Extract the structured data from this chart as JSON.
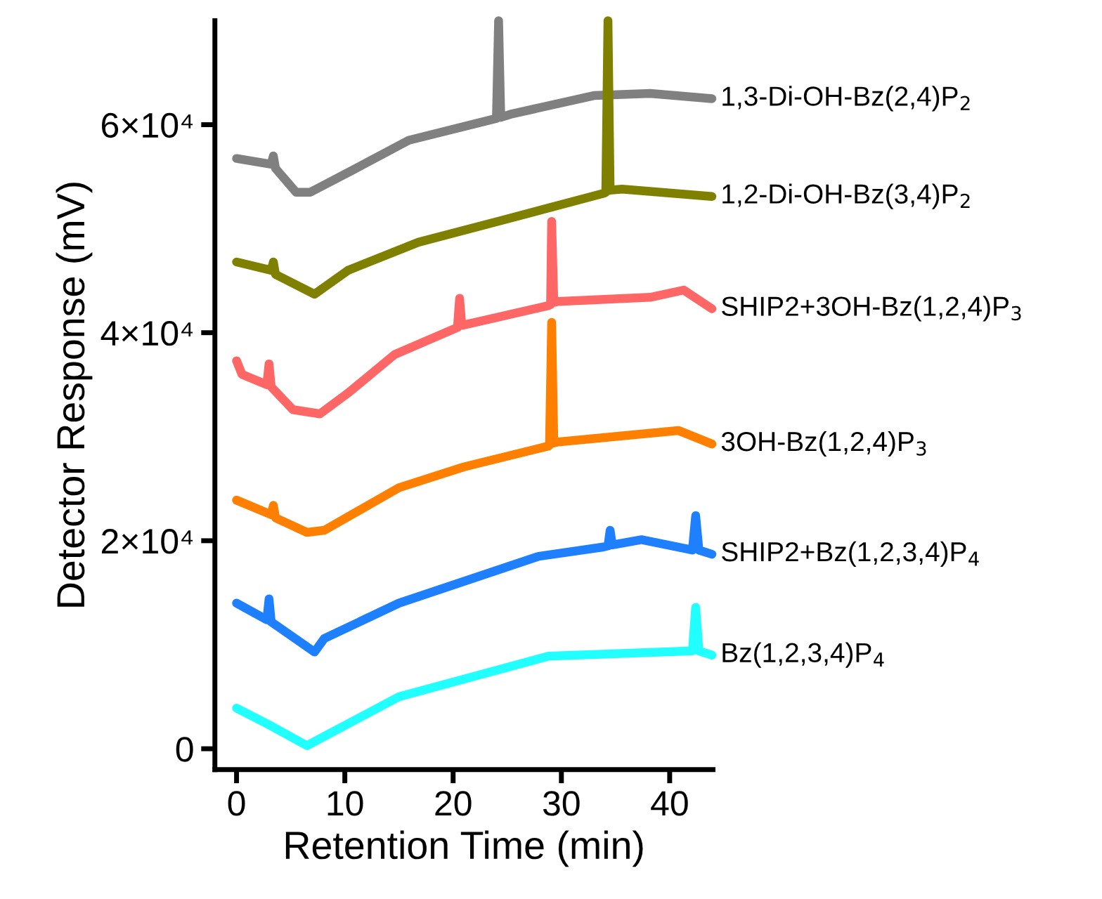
{
  "chart_data": {
    "type": "line",
    "xlabel": "Retention Time (min)",
    "ylabel": "Detector Response (mV)",
    "xlim": [
      -2,
      44
    ],
    "xticks": [
      0,
      10,
      20,
      30,
      40
    ],
    "ylim": [
      -2000,
      70000
    ],
    "yticks": [
      0,
      {
        "value": 20000,
        "label": "2×10⁴"
      },
      {
        "value": 40000,
        "label": "4×10⁴"
      },
      {
        "value": 60000,
        "label": "6×10⁴"
      }
    ],
    "grid": false,
    "legend": false,
    "marker": "none",
    "line_style": "solid",
    "series": [
      {
        "name": "1,3-Di-OH-Bz(2,4)P$_{2}$",
        "color": "#808080",
        "x": [
          0,
          3.2,
          3.4,
          3.6,
          5.5,
          6.8,
          10.3,
          15.9,
          23.6,
          24.0,
          24.2,
          24.4,
          25.3,
          33,
          38.2,
          43.9
        ],
        "values": [
          56750,
          56200,
          57000,
          55800,
          53500,
          53500,
          55400,
          58500,
          60500,
          60600,
          70000,
          60700,
          61000,
          62800,
          63000,
          62500
        ]
      },
      {
        "name": "1,2-Di-OH-Bz(3,4)P$_{2}$",
        "color": "#808000",
        "x": [
          0,
          3.2,
          3.4,
          3.6,
          7.2,
          10.3,
          16.8,
          24.5,
          33.9,
          34.1,
          34.3,
          34.5,
          35.6,
          43.9
        ],
        "values": [
          46800,
          46000,
          46800,
          45600,
          43700,
          46000,
          48700,
          50800,
          53400,
          53500,
          70000,
          53700,
          53800,
          53100
        ]
      },
      {
        "name": "SHIP2+3OH-Bz(1,2,4)P$_{3}$",
        "color": "#ff6666",
        "x": [
          0,
          0.5,
          2.8,
          3.0,
          3.2,
          5.2,
          7.7,
          10.3,
          14.6,
          20.4,
          20.6,
          20.8,
          28.8,
          29.0,
          29.1,
          29.3,
          29.7,
          38.2,
          41.3,
          43.9
        ],
        "values": [
          37300,
          36000,
          35000,
          37000,
          34800,
          32600,
          32200,
          34200,
          37900,
          40500,
          43300,
          40700,
          42600,
          42700,
          50700,
          42900,
          43000,
          43400,
          44100,
          42300
        ]
      },
      {
        "name": "3OH-Bz(1,2,4)P$_{3}$",
        "color": "#ff8000",
        "x": [
          0,
          3.2,
          3.4,
          3.6,
          6.5,
          8.1,
          15,
          21,
          28.8,
          28.9,
          29.1,
          29.3,
          29.7,
          40.8,
          43.9
        ],
        "values": [
          23900,
          22500,
          23400,
          22200,
          20800,
          21000,
          25100,
          27100,
          29100,
          29200,
          41000,
          29400,
          29500,
          30600,
          29300
        ]
      },
      {
        "name": "SHIP2+Bz(1,2,3,4)P$_{4}$",
        "color": "#1e7fff",
        "x": [
          0,
          2.8,
          3.0,
          3.2,
          7.2,
          8.1,
          15,
          27.9,
          33.9,
          34.3,
          34.5,
          34.7,
          37.4,
          42.1,
          42.4,
          42.7,
          43.9
        ],
        "values": [
          14000,
          12400,
          14400,
          12200,
          9300,
          10600,
          14000,
          18500,
          19400,
          19500,
          21000,
          19600,
          20100,
          19100,
          22400,
          19100,
          18700
        ]
      },
      {
        "name": "Bz(1,2,3,4)P$_{4}$",
        "color": "#22ffff",
        "x": [
          0,
          3,
          6.5,
          15,
          28.8,
          42.1,
          42.4,
          42.7,
          43.9
        ],
        "values": [
          3900,
          2300,
          300,
          5000,
          8900,
          9400,
          13600,
          9400,
          9000
        ]
      }
    ]
  }
}
